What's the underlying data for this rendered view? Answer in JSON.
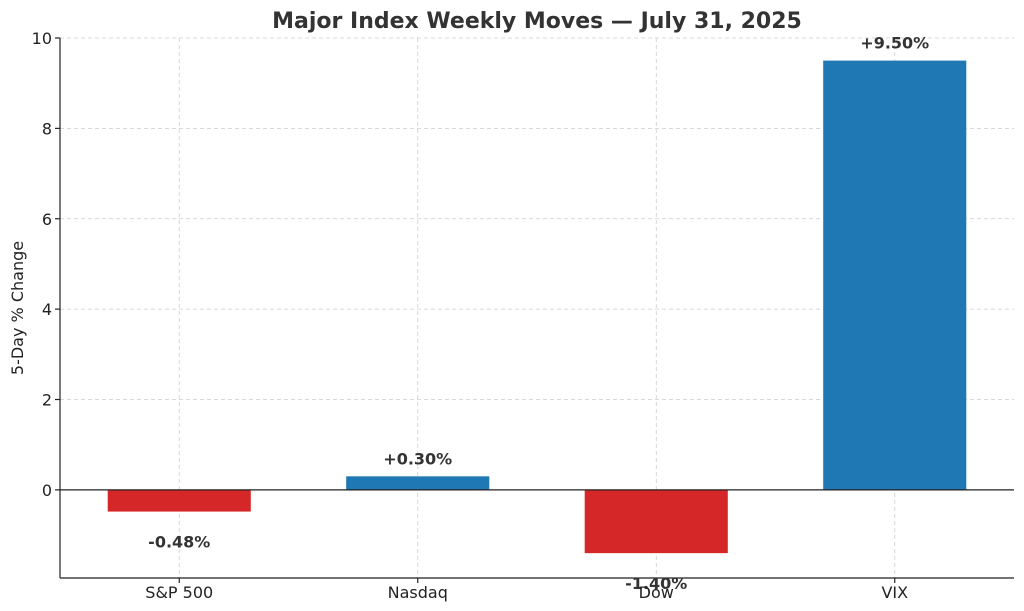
{
  "chart_data": {
    "type": "bar",
    "title": "Major Index Weekly Moves — July 31, 2025",
    "xlabel": "",
    "ylabel": "5-Day % Change",
    "categories": [
      "S&P 500",
      "Nasdaq",
      "Dow",
      "VIX"
    ],
    "values": [
      -0.48,
      0.3,
      -1.4,
      9.5
    ],
    "data_labels": [
      "-0.48%",
      "+0.30%",
      "-1.40%",
      "+9.50%"
    ],
    "ylim": [
      -1.95,
      10.0
    ],
    "yticks": [
      0,
      2,
      4,
      6,
      8,
      10
    ],
    "grid": true,
    "colors": {
      "positive": "#1f77b4",
      "negative": "#d62728"
    }
  }
}
